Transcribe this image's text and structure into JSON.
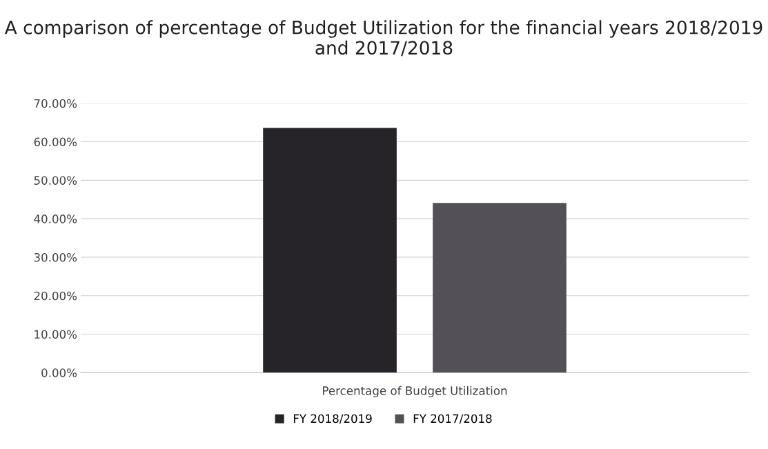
{
  "chart_data": {
    "type": "bar",
    "title": "A comparison of percentage of Budget Utilization for the financial years 2018/2019 and 2017/2018",
    "categories": [
      "Percentage of Budget Utilization"
    ],
    "series": [
      {
        "name": "FY 2018/2019",
        "color": "#262428",
        "values": [
          63.6
        ]
      },
      {
        "name": "FY 2017/2018",
        "color": "#545058",
        "values": [
          44.1
        ]
      }
    ],
    "ylim": [
      0,
      70
    ],
    "yticks": [
      {
        "value": 0,
        "label": "0.00%"
      },
      {
        "value": 10,
        "label": "10.00%"
      },
      {
        "value": 20,
        "label": "20.00%"
      },
      {
        "value": 30,
        "label": "30.00%"
      },
      {
        "value": 40,
        "label": "40.00%"
      },
      {
        "value": 50,
        "label": "50.00%"
      },
      {
        "value": 60,
        "label": "60.00%"
      },
      {
        "value": 70,
        "label": "70.00%"
      }
    ],
    "grid": "y",
    "legend": "bottom"
  }
}
